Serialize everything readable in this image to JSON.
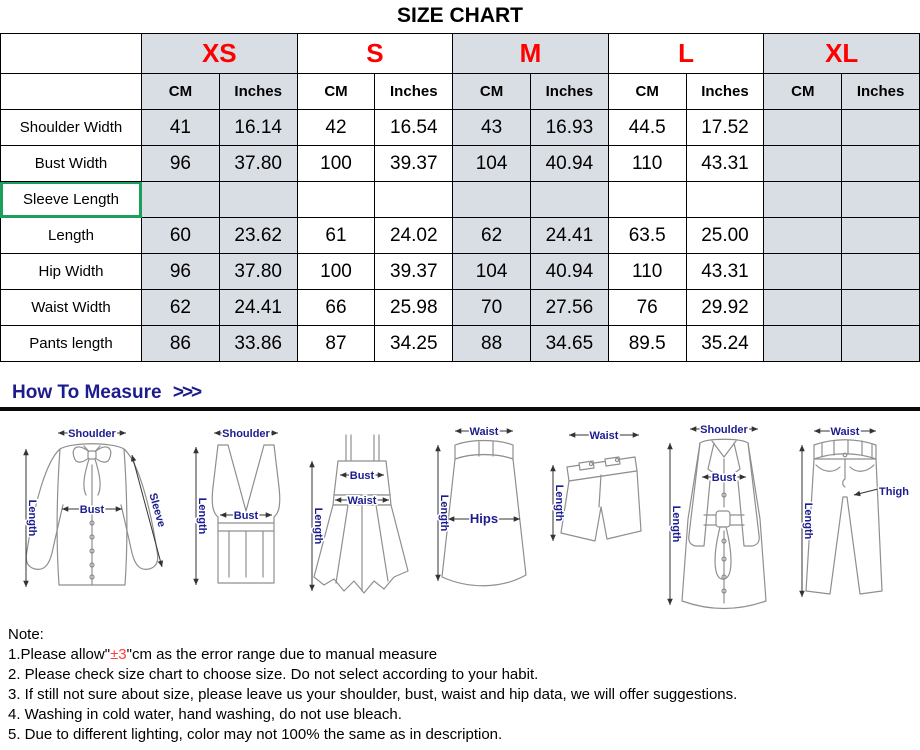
{
  "title": "SIZE CHART",
  "colors": {
    "size_red": "#ff0000",
    "navy": "#1c1c8f",
    "stripe": "#d9dde4",
    "selection_green": "#1aa05a",
    "note_red": "#ff4040"
  },
  "table": {
    "sizes": [
      "XS",
      "S",
      "M",
      "L",
      "XL"
    ],
    "shaded_sizes": [
      true,
      false,
      true,
      false,
      true
    ],
    "units": [
      "CM",
      "Inches"
    ],
    "rows": [
      {
        "label": "Shoulder Width",
        "selected": false,
        "values": [
          "41",
          "16.14",
          "42",
          "16.54",
          "43",
          "16.93",
          "44.5",
          "17.52",
          "",
          ""
        ]
      },
      {
        "label": "Bust Width",
        "selected": false,
        "values": [
          "96",
          "37.80",
          "100",
          "39.37",
          "104",
          "40.94",
          "110",
          "43.31",
          "",
          ""
        ]
      },
      {
        "label": "Sleeve Length",
        "selected": true,
        "values": [
          "",
          "",
          "",
          "",
          "",
          "",
          "",
          "",
          "",
          ""
        ]
      },
      {
        "label": "Length",
        "selected": false,
        "values": [
          "60",
          "23.62",
          "61",
          "24.02",
          "62",
          "24.41",
          "63.5",
          "25.00",
          "",
          ""
        ]
      },
      {
        "label": "Hip Width",
        "selected": false,
        "values": [
          "96",
          "37.80",
          "100",
          "39.37",
          "104",
          "40.94",
          "110",
          "43.31",
          "",
          ""
        ]
      },
      {
        "label": "Waist Width",
        "selected": false,
        "values": [
          "62",
          "24.41",
          "66",
          "25.98",
          "70",
          "27.56",
          "76",
          "29.92",
          "",
          ""
        ]
      },
      {
        "label": "Pants length",
        "selected": false,
        "values": [
          "86",
          "33.86",
          "87",
          "34.25",
          "88",
          "34.65",
          "89.5",
          "35.24",
          "",
          ""
        ]
      }
    ]
  },
  "measure": {
    "heading": "How To Measure",
    "arrows": ">>>",
    "figures": [
      {
        "name": "blouse",
        "labels": {
          "shoulder": "Shoulder",
          "bust": "Bust",
          "sleeve": "Sleeve",
          "length": "Length"
        }
      },
      {
        "name": "vest",
        "labels": {
          "shoulder": "Shoulder",
          "bust": "Bust",
          "length": "Length"
        }
      },
      {
        "name": "dress",
        "labels": {
          "bust": "Bust",
          "waist": "Waist",
          "length": "Length"
        }
      },
      {
        "name": "skirt",
        "labels": {
          "waist": "Waist",
          "hips": "Hips",
          "length": "Length"
        }
      },
      {
        "name": "shorts",
        "labels": {
          "waist": "Waist",
          "length": "Length"
        }
      },
      {
        "name": "coat",
        "labels": {
          "shoulder": "Shoulder",
          "bust": "Bust",
          "length": "Length"
        }
      },
      {
        "name": "jeans",
        "labels": {
          "waist": "Waist",
          "thigh": "Thigh",
          "length": "Length"
        }
      }
    ]
  },
  "notes": {
    "heading": "Note:",
    "items": [
      [
        {
          "t": "1.Please allow\""
        },
        {
          "t": "±3",
          "red": true
        },
        {
          "t": "\"cm as the error range due to manual measure"
        }
      ],
      [
        {
          "t": "2. Please check size chart to choose size. Do not select according to your habit."
        }
      ],
      [
        {
          "t": "3. If still not sure about size, please leave us your shoulder, bust, waist and hip data, we will offer suggestions."
        }
      ],
      [
        {
          "t": "4. Washing in cold water, hand washing, do not use bleach."
        }
      ],
      [
        {
          "t": "5. Due to different lighting, color may not 100% the same as in description."
        }
      ]
    ]
  }
}
